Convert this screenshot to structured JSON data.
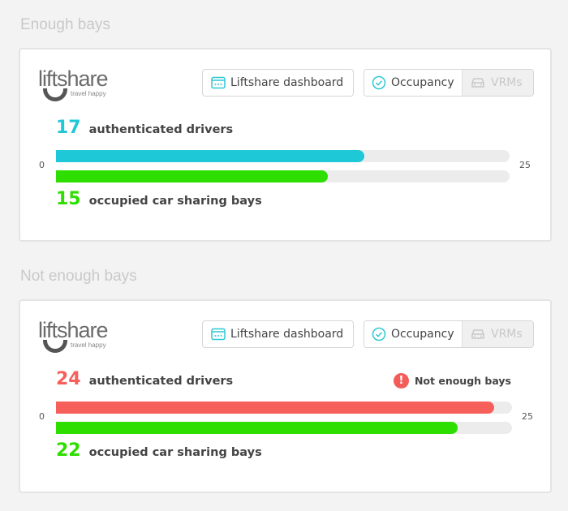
{
  "colors": {
    "drivers_ok": "#1ec8d6",
    "drivers_over": "#f7605a",
    "bays": "#2ede00",
    "track": "#ececec"
  },
  "sections": [
    {
      "title": "Enough bays",
      "logo": {
        "word": "liftshare",
        "tagline": "travel happy"
      },
      "buttons": {
        "dashboard": "Liftshare dashboard",
        "occupancy": "Occupancy",
        "vrms": "VRMs"
      },
      "drivers": {
        "value": 17,
        "value_text": "17",
        "label": "authenticated drivers"
      },
      "bays": {
        "value": 15,
        "value_text": "15",
        "label": "occupied car sharing bays"
      },
      "axis": {
        "min": "0",
        "max": "25"
      },
      "warning": null
    },
    {
      "title": "Not enough bays",
      "logo": {
        "word": "liftshare",
        "tagline": "travel happy"
      },
      "buttons": {
        "dashboard": "Liftshare dashboard",
        "occupancy": "Occupancy",
        "vrms": "VRMs"
      },
      "drivers": {
        "value": 24,
        "value_text": "24",
        "label": "authenticated drivers"
      },
      "bays": {
        "value": 22,
        "value_text": "22",
        "label": "occupied car sharing bays"
      },
      "axis": {
        "min": "0",
        "max": "25"
      },
      "warning": {
        "icon": "exclamation-icon",
        "text": "Not enough bays"
      }
    }
  ]
}
